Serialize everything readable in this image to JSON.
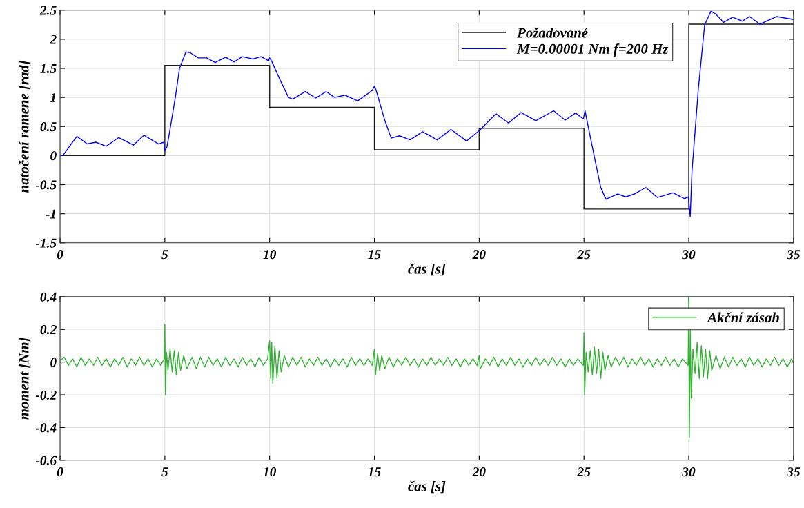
{
  "chart_data": [
    {
      "type": "line",
      "xlabel": "čas [s]",
      "ylabel": "natočení ramene [rad]",
      "xlim": [
        0,
        35
      ],
      "ylim": [
        -1.5,
        2.5
      ],
      "xticks": [
        0,
        5,
        10,
        15,
        20,
        25,
        30,
        35
      ],
      "yticks": [
        -1.5,
        -1,
        -0.5,
        0,
        0.5,
        1,
        1.5,
        2,
        2.5
      ],
      "grid": true,
      "legend": "top right",
      "series": [
        {
          "name": "Požadované",
          "type": "step",
          "color": "#1a1a1a",
          "x": [
            0,
            5,
            10,
            15,
            20,
            25,
            30,
            35
          ],
          "values": [
            0,
            1.55,
            0.83,
            0.1,
            0.47,
            -0.92,
            2.26,
            2.26
          ]
        },
        {
          "name": "M=0.00001 Nm f=200 Hz",
          "color": "#0000ff",
          "x": [
            0,
            0.15,
            0.8,
            1.3,
            1.7,
            2.2,
            2.8,
            3.5,
            4.0,
            4.7,
            4.95,
            5.0,
            5.1,
            5.2,
            5.5,
            5.7,
            6.0,
            6.2,
            6.6,
            7.0,
            7.4,
            7.9,
            8.3,
            8.7,
            9.2,
            9.6,
            9.95,
            10.0,
            10.1,
            10.5,
            10.9,
            11.1,
            11.7,
            12.2,
            12.7,
            13.1,
            13.6,
            14.2,
            14.9,
            15.0,
            15.1,
            15.5,
            15.8,
            16.2,
            16.7,
            17.3,
            18.0,
            18.65,
            19.4,
            20.0,
            20.2,
            20.8,
            21.4,
            22.0,
            22.7,
            23.55,
            24.1,
            24.6,
            24.97,
            25.05,
            25.15,
            25.5,
            25.8,
            26.05,
            26.6,
            27.0,
            27.4,
            27.95,
            28.5,
            29.25,
            29.8,
            29.98,
            30.07,
            30.15,
            30.46,
            30.76,
            31.06,
            31.3,
            31.66,
            32.1,
            32.55,
            32.9,
            33.4,
            34.2,
            35
          ],
          "values": [
            0,
            0.01,
            0.33,
            0.2,
            0.23,
            0.16,
            0.31,
            0.18,
            0.35,
            0.2,
            0.23,
            0.08,
            0.15,
            0.35,
            1.0,
            1.5,
            1.78,
            1.77,
            1.68,
            1.68,
            1.6,
            1.69,
            1.61,
            1.7,
            1.66,
            1.7,
            1.63,
            1.68,
            1.62,
            1.3,
            1.0,
            0.97,
            1.1,
            0.99,
            1.1,
            1.0,
            1.04,
            0.94,
            1.12,
            1.2,
            1.1,
            0.6,
            0.3,
            0.34,
            0.27,
            0.41,
            0.27,
            0.45,
            0.25,
            0.43,
            0.5,
            0.72,
            0.56,
            0.74,
            0.6,
            0.77,
            0.61,
            0.73,
            0.63,
            0.77,
            0.59,
            -0.03,
            -0.55,
            -0.75,
            -0.66,
            -0.71,
            -0.66,
            -0.55,
            -0.72,
            -0.64,
            -0.74,
            -0.71,
            -1.05,
            -0.29,
            1.16,
            2.25,
            2.48,
            2.43,
            2.29,
            2.38,
            2.31,
            2.39,
            2.26,
            2.39,
            2.34
          ]
        }
      ]
    },
    {
      "type": "line",
      "xlabel": "čas [s]",
      "ylabel": "moment [Nm]",
      "xlim": [
        0,
        35
      ],
      "ylim": [
        -0.6,
        0.4
      ],
      "xticks": [
        0,
        5,
        10,
        15,
        20,
        25,
        30,
        35
      ],
      "yticks": [
        -0.6,
        -0.4,
        -0.2,
        0,
        0.2,
        0.4
      ],
      "grid": true,
      "legend": "top right",
      "series": [
        {
          "name": "Akční zásah",
          "color": "#33b233",
          "x": [
            0,
            0.2,
            0.4,
            0.6,
            0.8,
            1.0,
            1.2,
            1.4,
            1.6,
            1.8,
            2.0,
            2.2,
            2.4,
            2.6,
            2.8,
            3.0,
            3.2,
            3.4,
            3.6,
            3.8,
            4.0,
            4.2,
            4.4,
            4.6,
            4.8,
            4.97,
            5.0,
            5.03,
            5.08,
            5.15,
            5.25,
            5.35,
            5.45,
            5.55,
            5.65,
            5.75,
            5.9,
            6.05,
            6.3,
            6.5,
            6.7,
            6.9,
            7.1,
            7.3,
            7.5,
            7.7,
            7.9,
            8.1,
            8.3,
            8.5,
            8.7,
            8.9,
            9.1,
            9.3,
            9.5,
            9.7,
            9.9,
            10.0,
            10.05,
            10.1,
            10.15,
            10.25,
            10.35,
            10.45,
            10.55,
            10.7,
            10.9,
            11.1,
            11.3,
            11.5,
            11.7,
            11.9,
            12.1,
            12.3,
            12.5,
            12.7,
            12.9,
            13.1,
            13.3,
            13.5,
            13.7,
            13.9,
            14.1,
            14.3,
            14.5,
            14.7,
            14.9,
            15.0,
            15.05,
            15.15,
            15.25,
            15.35,
            15.5,
            15.7,
            15.9,
            16.1,
            16.3,
            16.5,
            16.7,
            16.9,
            17.1,
            17.3,
            17.5,
            17.7,
            17.9,
            18.1,
            18.3,
            18.5,
            18.7,
            18.9,
            19.1,
            19.3,
            19.5,
            19.7,
            19.9,
            20.0,
            20.05,
            20.3,
            20.5,
            20.7,
            20.9,
            21.1,
            21.3,
            21.5,
            21.7,
            21.9,
            22.1,
            22.3,
            22.5,
            22.7,
            22.9,
            23.1,
            23.3,
            23.5,
            23.7,
            23.9,
            24.1,
            24.3,
            24.5,
            24.7,
            24.97,
            25.0,
            25.03,
            25.1,
            25.2,
            25.3,
            25.4,
            25.5,
            25.6,
            25.7,
            25.8,
            25.9,
            26.0,
            26.15,
            26.3,
            26.5,
            26.7,
            26.9,
            27.1,
            27.3,
            27.5,
            27.7,
            27.9,
            28.1,
            28.3,
            28.5,
            28.7,
            28.9,
            29.1,
            29.3,
            29.5,
            29.7,
            29.97,
            30.0,
            30.03,
            30.07,
            30.12,
            30.2,
            30.3,
            30.4,
            30.5,
            30.6,
            30.7,
            30.8,
            30.9,
            31.0,
            31.1,
            31.3,
            31.5,
            31.7,
            31.9,
            32.1,
            32.3,
            32.5,
            32.7,
            32.9,
            33.1,
            33.3,
            33.5,
            33.7,
            33.9,
            34.1,
            34.3,
            34.5,
            34.7,
            34.9,
            35
          ],
          "values": [
            0.01,
            0.03,
            -0.02,
            0.02,
            -0.03,
            0.03,
            -0.02,
            0.02,
            -0.02,
            0.03,
            -0.02,
            0.02,
            -0.03,
            0.02,
            -0.02,
            0.03,
            -0.03,
            0.02,
            -0.02,
            0.03,
            -0.02,
            0.02,
            -0.03,
            0.02,
            -0.02,
            0.02,
            0.23,
            -0.2,
            0.06,
            -0.05,
            0.08,
            -0.06,
            0.07,
            -0.08,
            0.06,
            -0.05,
            0.04,
            -0.04,
            0.03,
            -0.04,
            0.03,
            -0.03,
            0.03,
            -0.02,
            0.02,
            -0.03,
            0.03,
            -0.02,
            0.02,
            -0.03,
            0.03,
            -0.02,
            0.02,
            -0.03,
            0.03,
            -0.02,
            0.02,
            0.13,
            -0.1,
            0.12,
            -0.13,
            0.1,
            -0.1,
            0.07,
            -0.06,
            0.04,
            -0.03,
            0.03,
            -0.02,
            0.03,
            -0.03,
            0.02,
            -0.02,
            0.03,
            -0.02,
            0.02,
            -0.03,
            0.02,
            -0.02,
            0.02,
            -0.03,
            0.03,
            -0.02,
            0.02,
            -0.02,
            0.02,
            -0.02,
            0.08,
            -0.08,
            0.05,
            -0.05,
            0.04,
            -0.04,
            0.03,
            -0.03,
            0.02,
            -0.02,
            0.03,
            -0.02,
            0.02,
            -0.03,
            0.02,
            -0.02,
            0.03,
            -0.02,
            0.02,
            -0.02,
            0.03,
            -0.02,
            0.02,
            -0.03,
            0.02,
            -0.02,
            0.02,
            -0.02,
            0.04,
            -0.04,
            0.02,
            -0.02,
            0.03,
            -0.03,
            0.02,
            -0.02,
            0.03,
            -0.02,
            0.02,
            -0.03,
            0.02,
            -0.02,
            0.03,
            -0.02,
            0.02,
            -0.02,
            0.03,
            -0.02,
            0.02,
            -0.03,
            0.02,
            -0.02,
            0.02,
            -0.02,
            0.18,
            -0.2,
            0.06,
            -0.06,
            0.07,
            -0.08,
            0.09,
            -0.07,
            0.08,
            -0.1,
            0.06,
            -0.05,
            0.04,
            -0.03,
            0.03,
            -0.02,
            0.03,
            -0.03,
            0.02,
            -0.02,
            0.03,
            -0.02,
            0.02,
            -0.03,
            0.02,
            -0.02,
            0.03,
            -0.02,
            0.02,
            -0.03,
            0.02,
            -0.02,
            0.4,
            -0.46,
            0.2,
            -0.22,
            0.08,
            -0.07,
            0.12,
            -0.1,
            0.1,
            -0.09,
            0.08,
            -0.1,
            0.07,
            -0.05,
            0.04,
            -0.04,
            0.03,
            -0.03,
            0.03,
            -0.02,
            0.02,
            -0.03,
            0.03,
            -0.02,
            0.02,
            -0.03,
            0.02,
            -0.02,
            0.03,
            -0.02,
            0.02,
            -0.03,
            0.02,
            0.0
          ]
        }
      ]
    }
  ]
}
